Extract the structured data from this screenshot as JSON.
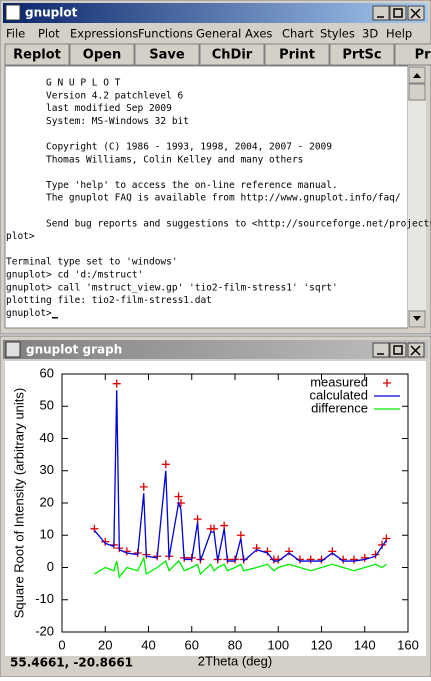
{
  "console_window": {
    "title": "gnuplot",
    "menu": [
      "File",
      "Plot",
      "Expressions",
      "Functions",
      "General",
      "Axes",
      "Chart",
      "Styles",
      "3D",
      "Help"
    ],
    "toolbar": [
      "Replot",
      "Open",
      "Save",
      "ChDir",
      "Print",
      "PrtSc",
      "Pre"
    ],
    "lines": [
      "G N U P L O T",
      "Version 4.2 patchlevel 6",
      "last modified Sep 2009",
      "System: MS-Windows 32 bit",
      "Copyright (C) 1986 - 1993, 1998, 2004, 2007 - 2009",
      "Thomas Williams, Colin Kelley and many others",
      "Type 'help' to access the on-line reference manual.",
      "The gnuplot FAQ is available from http://www.gnuplot.info/faq/",
      "Send bug reports and suggestions to <http://sourceforge.net/projects/gnu",
      "plot>",
      "Terminal type set to 'windows'",
      "gnuplot> cd 'd:/mstruct'",
      "gnuplot> call 'mstruct_view.gp' 'tio2-film-stress1' 'sqrt'",
      "plotting file: tio2-film-stress1.dat",
      "gnuplot>"
    ]
  },
  "graph_window": {
    "title": "gnuplot graph",
    "status": "55.4661, -20.8661"
  },
  "chart_data": {
    "type": "line",
    "x_label": "2Theta (deg)",
    "y_label": "Square Root of Intensity (arbitrary units)",
    "x": [
      15,
      20,
      24,
      25.3,
      26.5,
      30,
      35,
      37.8,
      39,
      44,
      48,
      49.5,
      53.9,
      55,
      56.5,
      60,
      62.7,
      64,
      68.8,
      70.3,
      72,
      75,
      76.5,
      80,
      82.7,
      84,
      90,
      95,
      98,
      100,
      105,
      110,
      115,
      120,
      125,
      130,
      135,
      140,
      145,
      148,
      150
    ],
    "series": [
      {
        "name": "measured",
        "color": "#dd0000",
        "style": "points",
        "values": [
          12,
          8,
          7,
          57,
          6,
          5,
          4.5,
          25,
          4,
          3.5,
          32,
          3.5,
          22,
          20,
          3,
          3,
          15,
          2.5,
          12,
          12,
          2.5,
          13,
          2.5,
          2.5,
          10,
          2.5,
          6,
          5,
          2.5,
          2.5,
          5,
          2.5,
          2.5,
          2.5,
          5,
          2.5,
          2.5,
          3,
          4,
          7,
          9
        ]
      },
      {
        "name": "calculated",
        "color": "#0000dd",
        "style": "lines",
        "values": [
          11.5,
          7.5,
          6.5,
          55,
          5.5,
          4.5,
          4,
          23,
          3.5,
          3,
          30,
          3,
          20,
          18,
          2.5,
          2.5,
          14,
          2,
          11,
          11,
          2,
          12,
          2,
          2,
          9,
          2,
          5.5,
          4.5,
          2,
          2,
          4.5,
          2,
          2,
          2,
          4.5,
          2,
          2,
          2.5,
          3.5,
          6.5,
          8.5
        ]
      },
      {
        "name": "difference",
        "color": "#00ee00",
        "style": "lines",
        "values": [
          -2,
          0,
          -1,
          2,
          -3,
          0,
          -1,
          3,
          -2,
          0,
          2,
          -1,
          2,
          1,
          -1,
          0,
          1,
          -2,
          1,
          -1,
          0,
          1,
          -1,
          0,
          1,
          -1,
          0,
          1,
          -1,
          0,
          1,
          0,
          -1,
          0,
          1,
          0,
          -1,
          0,
          1,
          0,
          1
        ]
      }
    ],
    "xlim": [
      0,
      160
    ],
    "xticks": [
      0,
      20,
      40,
      60,
      80,
      100,
      120,
      140,
      160
    ],
    "ylim": [
      -20,
      60
    ],
    "yticks": [
      -20,
      -10,
      0,
      10,
      20,
      30,
      40,
      50,
      60
    ],
    "legend": "upper right"
  }
}
